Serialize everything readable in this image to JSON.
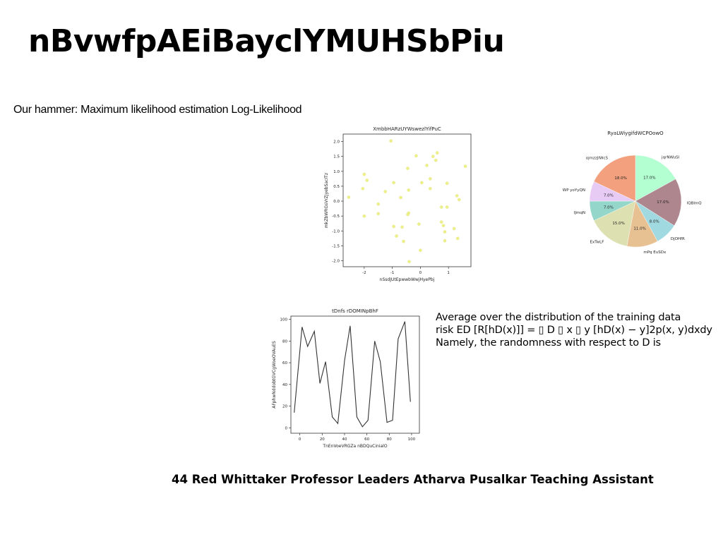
{
  "slide": {
    "title": "nBvwfpAEiBayclYMUHSbPiu",
    "subtitle": "Our hammer: Maximum likelihood estimation Log-Likelihood",
    "body_lines": [
      "Average over the distribution of the training data",
      "risk ED [R[hD(x)]] = ▯ D ▯ x ▯ y [hD(x) − y]2p(x, y)dxdy",
      "Namely, the randomness with respect to D is"
    ],
    "footer": "44 Red Whittaker Professor Leaders Atharva Pusalkar Teaching Assistant"
  },
  "chart_data": [
    {
      "type": "scatter",
      "title": "XmbbHARzUYWswezlYifPuC",
      "xlabel": "nSsdJUtEpwwbWwjHyePbj",
      "ylabel": "mkZbWRGsVrZJyebSacITz",
      "xlim": [
        -2.75,
        1.8
      ],
      "ylim": [
        -2.2,
        2.25
      ],
      "xticks": [
        -2,
        -1,
        0,
        1
      ],
      "yticks": [
        -2.0,
        -1.5,
        -1.0,
        -0.5,
        0.0,
        0.5,
        1.0,
        1.5,
        2.0
      ],
      "color": "#eef08a",
      "points": [
        [
          -2.55,
          0.13
        ],
        [
          -2.0,
          0.9
        ],
        [
          -1.9,
          0.7
        ],
        [
          -2.05,
          0.42
        ],
        [
          -2.0,
          -0.5
        ],
        [
          -1.5,
          -0.1
        ],
        [
          -1.5,
          -0.42
        ],
        [
          -1.25,
          0.32
        ],
        [
          -1.05,
          2.02
        ],
        [
          -0.95,
          0.62
        ],
        [
          -0.95,
          -0.85
        ],
        [
          -0.85,
          -1.17
        ],
        [
          -0.7,
          0.12
        ],
        [
          -0.65,
          -0.87
        ],
        [
          -0.6,
          -1.35
        ],
        [
          -0.45,
          1.1
        ],
        [
          -0.42,
          0.37
        ],
        [
          -0.42,
          -0.4
        ],
        [
          -0.45,
          -0.45
        ],
        [
          -0.4,
          -2.03
        ],
        [
          -0.15,
          1.52
        ],
        [
          -0.05,
          -0.77
        ],
        [
          0.0,
          -1.65
        ],
        [
          0.05,
          0.62
        ],
        [
          0.23,
          1.2
        ],
        [
          0.35,
          0.75
        ],
        [
          0.35,
          0.42
        ],
        [
          0.45,
          1.5
        ],
        [
          0.55,
          1.37
        ],
        [
          0.6,
          1.62
        ],
        [
          0.75,
          -0.7
        ],
        [
          0.75,
          -0.2
        ],
        [
          0.82,
          -0.82
        ],
        [
          0.87,
          -1.03
        ],
        [
          0.87,
          -1.33
        ],
        [
          0.95,
          -0.2
        ],
        [
          0.95,
          0.6
        ],
        [
          1.2,
          -0.92
        ],
        [
          1.3,
          0.18
        ],
        [
          1.38,
          0.05
        ],
        [
          1.33,
          -1.25
        ],
        [
          1.6,
          1.17
        ]
      ]
    },
    {
      "type": "pie",
      "title": "RyaLWiygifdWCPOowO",
      "slices": [
        {
          "label": "jqrNWuSl",
          "value": 17.0,
          "color": "#b3ffd2"
        },
        {
          "label": "lQBlmQ",
          "value": 17.0,
          "color": "#ad868e"
        },
        {
          "label": "DjOHfR",
          "value": 8.0,
          "color": "#a1d9e0"
        },
        {
          "label": "mPq EuSDx",
          "value": 11.0,
          "color": "#e8c193"
        },
        {
          "label": "ExTwLF",
          "value": 15.0,
          "color": "#dde0b0"
        },
        {
          "label": "IJmqN",
          "value": 7.0,
          "color": "#94d6c9"
        },
        {
          "label": "WP yoYyQN",
          "value": 7.0,
          "color": "#e8cbf5"
        },
        {
          "label": "ojmzzJIWcS",
          "value": 18.0,
          "color": "#f2a07e"
        }
      ]
    },
    {
      "type": "line",
      "title": "tDnfs rDOMINpBhF",
      "xlabel": "TnEnVoeVRGZa nBDQuCinialO",
      "ylabel": "AFphwNddobtGVCgWoeOVAuES",
      "xlim": [
        -8,
        107
      ],
      "ylim": [
        -5,
        103
      ],
      "xticks": [
        0,
        20,
        40,
        60,
        80,
        100
      ],
      "yticks": [
        0,
        20,
        40,
        60,
        80,
        100
      ],
      "color": "#333333",
      "x": [
        -5,
        2,
        7,
        13,
        18,
        23,
        29,
        34,
        40,
        45,
        51,
        56,
        61,
        67,
        72,
        78,
        83,
        88,
        94,
        99
      ],
      "y": [
        14,
        93,
        75,
        89,
        41,
        61,
        10,
        4,
        62,
        94,
        10,
        1,
        7,
        80,
        61,
        5,
        7,
        82,
        98,
        24
      ]
    }
  ]
}
